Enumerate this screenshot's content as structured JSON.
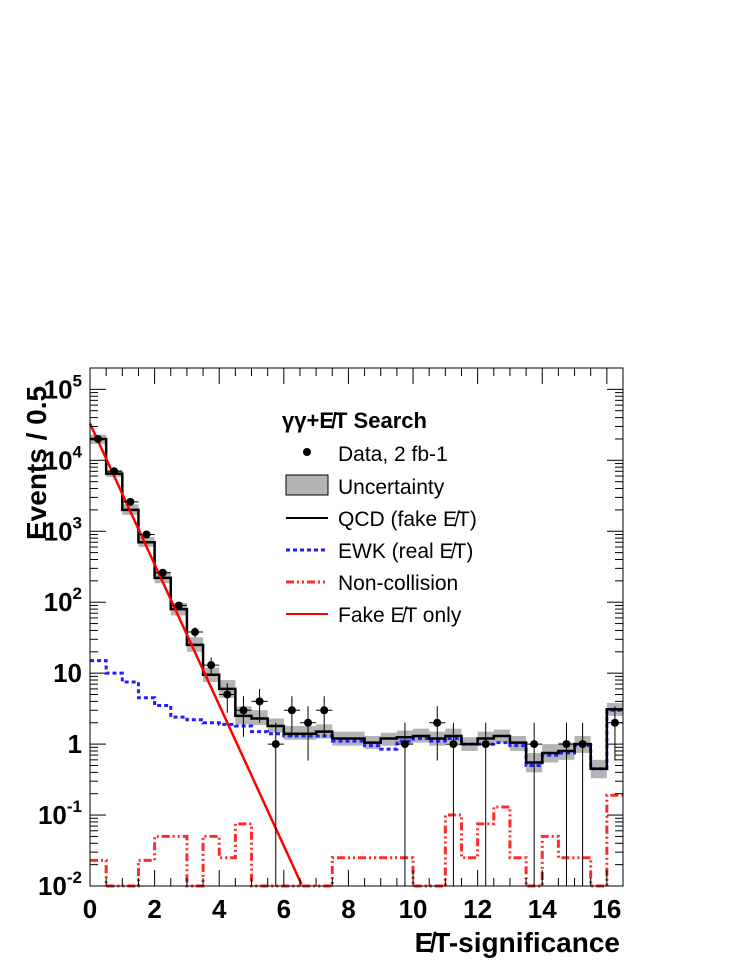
{
  "chart_data": {
    "type": "line",
    "ylabel": "Events / 0.5",
    "xlabel": "E̸T-significance",
    "xlim": [
      0,
      16.5
    ],
    "ylim": [
      0.01,
      200000
    ],
    "yscale": "log",
    "legend_placement": "top-center",
    "grid": false,
    "x_ticks": [
      "0",
      "2",
      "4",
      "6",
      "8",
      "10",
      "12",
      "14",
      "16"
    ],
    "y_ticks": [
      "10^-2",
      "10^-1",
      "1",
      "10",
      "10^2",
      "10^3",
      "10^4",
      "10^5"
    ],
    "legend": {
      "title": "γγ+E̸T Search",
      "entries": [
        "Data, 2 fb-1",
        "Uncertainty",
        "QCD (fake E̸T)",
        "EWK (real E̸T)",
        "Non-collision",
        "Fake E̸T only"
      ]
    },
    "bin_edges": [
      0,
      0.5,
      1,
      1.5,
      2,
      2.5,
      3,
      3.5,
      4,
      4.5,
      5,
      5.5,
      6,
      6.5,
      7,
      7.5,
      8,
      8.5,
      9,
      9.5,
      10,
      10.5,
      11,
      11.5,
      12,
      12.5,
      13,
      13.5,
      14,
      14.5,
      15,
      15.5,
      16,
      16.5
    ],
    "series": [
      {
        "name": "Data, 2 fb-1",
        "kind": "points",
        "color": "#000000",
        "x": [
          0.25,
          0.75,
          1.25,
          1.75,
          2.25,
          2.75,
          3.25,
          3.75,
          4.25,
          4.75,
          5.25,
          5.75,
          6.25,
          6.75,
          7.25,
          9.75,
          10.75,
          11.25,
          12.25,
          13.75,
          14.75,
          15.25,
          16.25
        ],
        "y": [
          20000,
          7000,
          2600,
          900,
          260,
          90,
          38,
          13,
          5,
          3,
          4,
          1,
          3,
          2,
          3,
          1,
          2,
          1,
          1,
          1,
          1,
          1,
          2
        ]
      },
      {
        "name": "QCD (fake E̸T)",
        "kind": "step",
        "color": "#000000",
        "values": [
          20000,
          6500,
          2000,
          700,
          220,
          80,
          25,
          9.5,
          6,
          2.5,
          2.3,
          1.8,
          1.4,
          1.4,
          1.5,
          1.2,
          1.2,
          1.05,
          1.2,
          1.25,
          1.3,
          1.2,
          1.3,
          1.0,
          1.2,
          1.3,
          1.05,
          0.55,
          0.75,
          0.8,
          1.0,
          0.45,
          3.1
        ]
      },
      {
        "name": "EWK (real E̸T)",
        "kind": "step",
        "color": "#1f1fff",
        "values": [
          15,
          10,
          7.5,
          4.5,
          3.5,
          2.4,
          2.2,
          2.0,
          1.9,
          1.8,
          1.5,
          1.4,
          1.3,
          1.3,
          1.3,
          1.1,
          1.1,
          0.95,
          0.85,
          1.1,
          1.2,
          1.1,
          1.2,
          1.0,
          1.0,
          1.05,
          0.95,
          0.5,
          0.7,
          0.75,
          0.95,
          0.45,
          3.0
        ]
      },
      {
        "name": "Non-collision",
        "kind": "step",
        "color": "#ff2a2a",
        "values": [
          0.023,
          0.01,
          0.01,
          0.023,
          0.05,
          0.05,
          0.01,
          0.05,
          0.025,
          0.075,
          0.01,
          0.01,
          0.01,
          0.01,
          0.01,
          0.025,
          0.025,
          0.025,
          0.025,
          0.025,
          0.01,
          0.01,
          0.1,
          0.025,
          0.075,
          0.13,
          0.025,
          0.01,
          0.05,
          0.025,
          0.025,
          0.01,
          0.19
        ]
      },
      {
        "name": "Fake E̸T only",
        "kind": "line",
        "color": "#ff0000",
        "x": [
          0,
          6.55
        ],
        "y": [
          33000,
          0.0105
        ]
      }
    ],
    "uncertainty_band": {
      "name": "Uncertainty",
      "color": "#b4b4b4",
      "low": [
        17000,
        5800,
        1700,
        600,
        185,
        65,
        20,
        7.5,
        4.5,
        1.9,
        1.85,
        1.45,
        1.15,
        1.15,
        1.2,
        0.95,
        0.95,
        0.85,
        0.95,
        1.0,
        1.05,
        0.95,
        1.05,
        0.8,
        0.95,
        1.05,
        0.8,
        0.4,
        0.55,
        0.6,
        0.75,
        0.33,
        2.5
      ],
      "high": [
        23000,
        7300,
        2400,
        830,
        270,
        98,
        32,
        12,
        8,
        3.4,
        3.0,
        2.3,
        1.8,
        1.8,
        1.9,
        1.5,
        1.5,
        1.3,
        1.45,
        1.55,
        1.65,
        1.5,
        1.65,
        1.25,
        1.5,
        1.6,
        1.3,
        0.75,
        1.0,
        1.05,
        1.3,
        0.6,
        3.8
      ]
    }
  }
}
